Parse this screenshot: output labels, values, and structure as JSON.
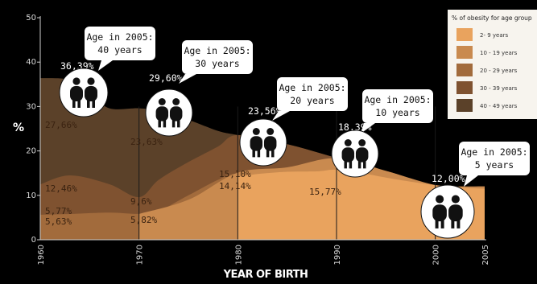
{
  "chart_data": {
    "type": "area",
    "title": "",
    "xlabel": "YEAR OF BIRTH",
    "ylabel": "%",
    "xlim": [
      1960,
      2005
    ],
    "ylim": [
      0,
      50
    ],
    "x_ticks": [
      "1960",
      "1970",
      "1980",
      "1990",
      "2000",
      "2005"
    ],
    "y_ticks": [
      "0",
      "10",
      "20",
      "30",
      "40",
      "50"
    ],
    "series_colors": [
      "#e9a35e",
      "#c98a4f",
      "#a26b3c",
      "#7f5230",
      "#5b4129"
    ],
    "legend": {
      "title": "% of obesity for age group",
      "entries": [
        "2- 9 years",
        "10 - 19 years",
        "20 - 29 years",
        "30 - 39 years",
        "40 - 49 years"
      ],
      "placement": "top-right"
    },
    "series": [
      {
        "name": "2- 9 years",
        "x": [
          1980,
          1982,
          1985,
          1988,
          1990,
          1993,
          1996,
          2000,
          2003,
          2005
        ],
        "values": [
          14.14,
          14.8,
          15.3,
          15.4,
          15.77,
          14.8,
          13.6,
          12.3,
          11.7,
          11.5
        ]
      },
      {
        "name": "10 - 19 years",
        "x": [
          1970,
          1975,
          1980,
          1985,
          1990,
          1995,
          2000,
          2003,
          2005
        ],
        "values": [
          5.82,
          9.0,
          15.1,
          16.3,
          18.39,
          15.5,
          12.3,
          12.0,
          12.0
        ]
      },
      {
        "name": "20 - 29 years",
        "x": [
          1960,
          1963,
          1967,
          1970,
          1972,
          1975,
          1978,
          1980,
          1985,
          1990,
          1995,
          2000,
          2005
        ],
        "values": [
          5.63,
          5.8,
          6.1,
          5.82,
          6.5,
          10.0,
          13.5,
          15.0,
          16.0,
          18.0,
          15.5,
          12.3,
          12.0
        ]
      },
      {
        "name": "30 - 39 years",
        "x": [
          1960,
          1963,
          1967,
          1970,
          1972,
          1975,
          1978,
          1980,
          1985,
          1990,
          1995,
          2000,
          2005
        ],
        "values": [
          12.46,
          14.5,
          12.5,
          9.6,
          13.5,
          17.5,
          21.0,
          23.56,
          21.5,
          18.4,
          15.0,
          12.3,
          12.0
        ]
      },
      {
        "name": "40 - 49 years",
        "x": [
          1960,
          1963,
          1965,
          1967,
          1970,
          1972,
          1975,
          1978,
          1980,
          1985,
          1990,
          1995,
          2000,
          2005
        ],
        "values": [
          36.39,
          36.0,
          33.0,
          29.6,
          29.6,
          29.0,
          27.0,
          24.5,
          23.56,
          21.5,
          18.4,
          15.0,
          12.3,
          12.0
        ]
      }
    ],
    "annotations": [
      {
        "x": 1960,
        "y": 27.66,
        "text": "27,66%"
      },
      {
        "x": 1960,
        "y": 12.46,
        "text": "12,46%"
      },
      {
        "x": 1960,
        "y": 5.77,
        "text": "5,77%"
      },
      {
        "x": 1960,
        "y": 5.63,
        "text": "5,63%"
      },
      {
        "x": 1970,
        "y": 23.63,
        "text": "23,63%"
      },
      {
        "x": 1970,
        "y": 9.6,
        "text": "9,6%"
      },
      {
        "x": 1970,
        "y": 5.82,
        "text": "5,82%"
      },
      {
        "x": 1980,
        "y": 15.1,
        "text": "15,10%"
      },
      {
        "x": 1980,
        "y": 14.14,
        "text": "14,14%"
      },
      {
        "x": 1990,
        "y": 15.77,
        "text": "15,77%"
      }
    ],
    "callouts": [
      {
        "value": "36,39%",
        "line1": "Age in 2005:",
        "line2": "40 years"
      },
      {
        "value": "29,60%",
        "line1": "Age in 2005:",
        "line2": "30 years"
      },
      {
        "value": "23,56%",
        "line1": "Age in 2005:",
        "line2": "20 years"
      },
      {
        "value": "18,39%",
        "line1": "Age in 2005:",
        "line2": "10 years"
      },
      {
        "value": "12,00%",
        "line1": "Age in 2005:",
        "line2": "5 years"
      }
    ]
  }
}
